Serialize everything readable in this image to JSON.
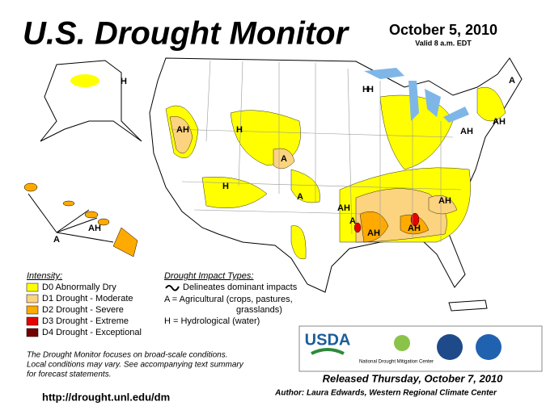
{
  "header": {
    "title": "U.S. Drought Monitor",
    "date": "October 5, 2010",
    "valid": "Valid 8 a.m. EDT"
  },
  "legend": {
    "title": "Intensity:",
    "items": [
      {
        "label": "D0 Abnormally Dry",
        "color": "#ffff00"
      },
      {
        "label": "D1 Drought - Moderate",
        "color": "#fcd37f"
      },
      {
        "label": "D2 Drought - Severe",
        "color": "#ffaa00"
      },
      {
        "label": "D3 Drought - Extreme",
        "color": "#e60000"
      },
      {
        "label": "D4 Drought - Exceptional",
        "color": "#730000"
      }
    ]
  },
  "impacts": {
    "title": "Drought Impact Types:",
    "lines": [
      "Delineates dominant impacts",
      "A = Agricultural (crops, pastures,",
      "grasslands)",
      "H = Hydrological (water)"
    ]
  },
  "map": {
    "labels": [
      "H",
      "H",
      "AH",
      "H",
      "A",
      "H",
      "A",
      "AH",
      "A",
      "AH",
      "AH",
      "AH",
      "AH",
      "AH",
      "H",
      "A",
      "A",
      "AH"
    ]
  },
  "logos": {
    "usda": "USDA",
    "ndmc": "National Drought Mitigation Center"
  },
  "note": [
    "The Drought Monitor focuses on broad-scale conditions.",
    "Local conditions may vary. See accompanying text summary",
    "for forecast statements."
  ],
  "footer": {
    "released": "Released Thursday, October 7, 2010",
    "author": "Author: Laura Edwards, Western Regional Climate Center",
    "url": "http://drought.unl.edu/dm"
  }
}
